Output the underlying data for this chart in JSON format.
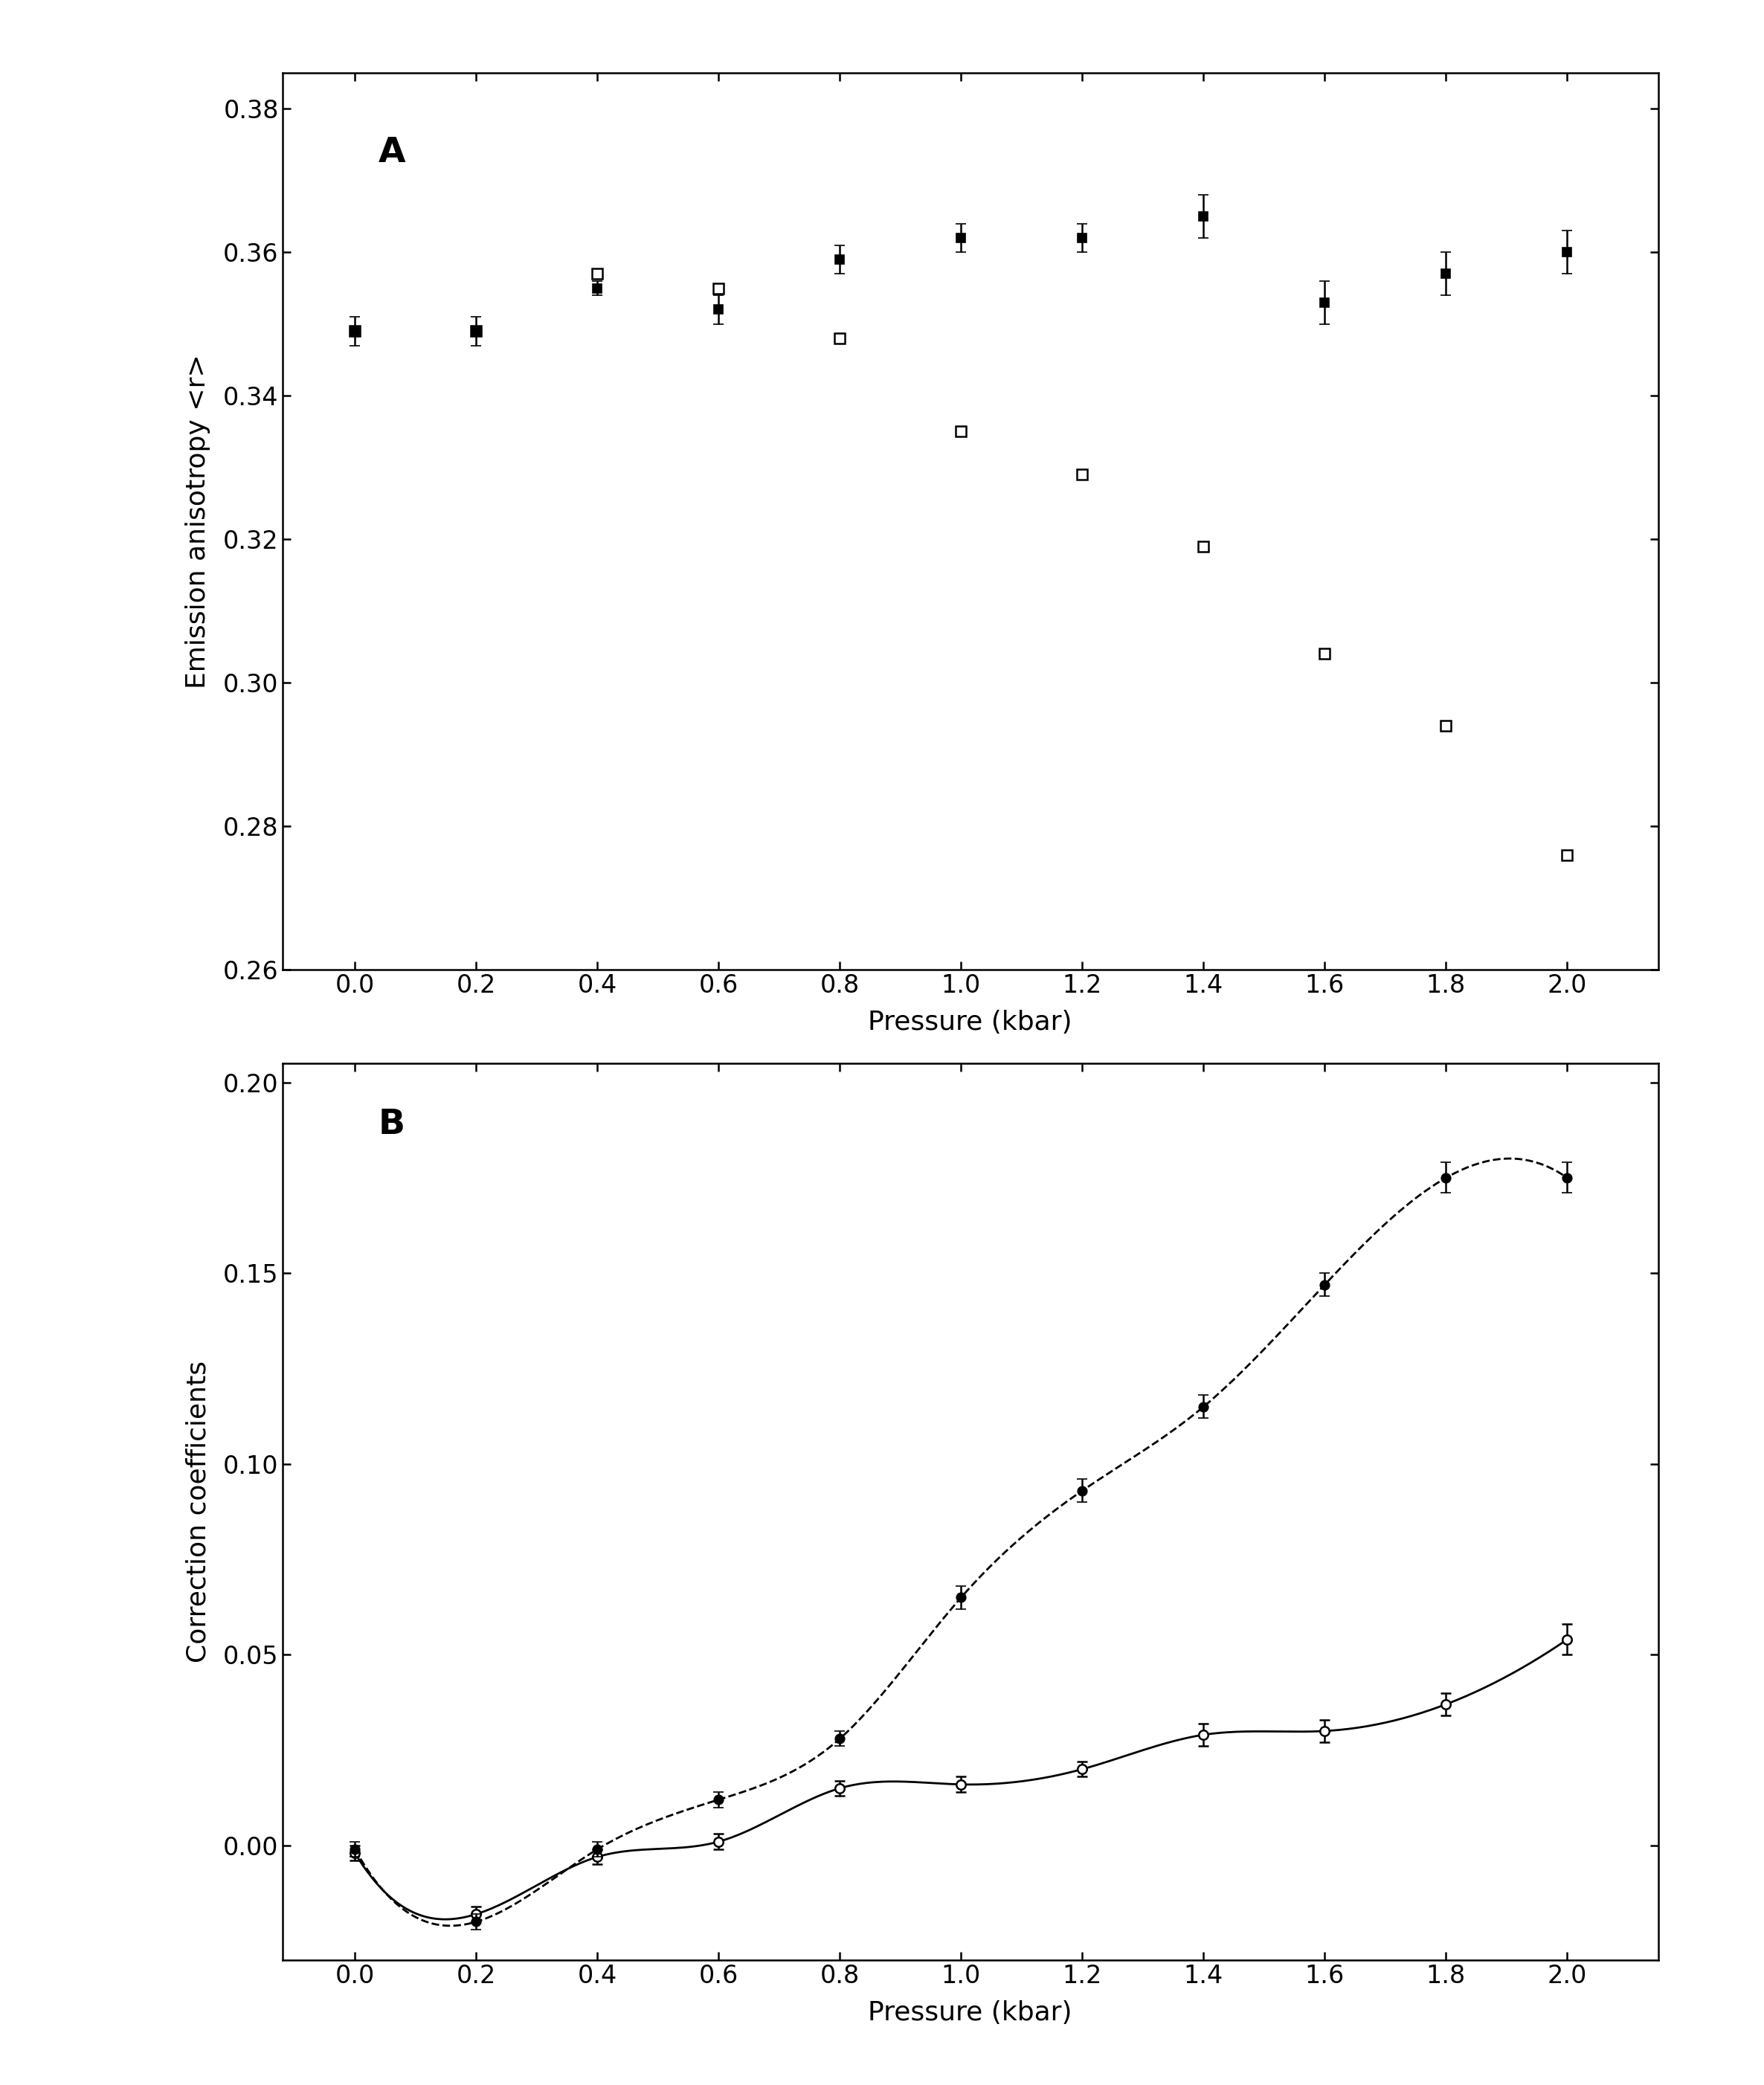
{
  "panel_A": {
    "label": "A",
    "xlabel": "Pressure (kbar)",
    "ylabel": "Emission anisotropy <r>",
    "xlim": [
      -0.12,
      2.15
    ],
    "ylim": [
      0.26,
      0.385
    ],
    "xticks": [
      0.0,
      0.2,
      0.4,
      0.6,
      0.8,
      1.0,
      1.2,
      1.4,
      1.6,
      1.8,
      2.0
    ],
    "yticks": [
      0.26,
      0.28,
      0.3,
      0.32,
      0.34,
      0.36,
      0.38
    ],
    "filled_x": [
      0.0,
      0.2,
      0.4,
      0.6,
      0.8,
      1.0,
      1.2,
      1.4,
      1.6,
      1.8,
      2.0
    ],
    "filled_y": [
      0.349,
      0.349,
      0.355,
      0.352,
      0.359,
      0.362,
      0.362,
      0.365,
      0.353,
      0.357,
      0.36
    ],
    "filled_yerr": [
      0.002,
      0.002,
      0.001,
      0.002,
      0.002,
      0.002,
      0.002,
      0.003,
      0.003,
      0.003,
      0.003
    ],
    "open_x": [
      0.0,
      0.2,
      0.4,
      0.6,
      0.8,
      1.0,
      1.2,
      1.4,
      1.6,
      1.8,
      2.0
    ],
    "open_y": [
      0.349,
      0.349,
      0.357,
      0.355,
      0.348,
      0.335,
      0.329,
      0.319,
      0.304,
      0.294,
      0.276
    ]
  },
  "panel_B": {
    "label": "B",
    "xlabel": "Pressure (kbar)",
    "ylabel": "Correction coefficients",
    "xlim": [
      -0.12,
      2.15
    ],
    "ylim": [
      -0.03,
      0.205
    ],
    "xticks": [
      0.0,
      0.2,
      0.4,
      0.6,
      0.8,
      1.0,
      1.2,
      1.4,
      1.6,
      1.8,
      2.0
    ],
    "yticks": [
      0.0,
      0.05,
      0.1,
      0.15,
      0.2
    ],
    "filled_x": [
      0.0,
      0.2,
      0.4,
      0.6,
      0.8,
      1.0,
      1.2,
      1.4,
      1.6,
      1.8,
      2.0
    ],
    "filled_y": [
      -0.001,
      -0.02,
      -0.001,
      0.012,
      0.028,
      0.065,
      0.093,
      0.115,
      0.147,
      0.175,
      0.175
    ],
    "filled_yerr": [
      0.002,
      0.002,
      0.002,
      0.002,
      0.002,
      0.003,
      0.003,
      0.003,
      0.003,
      0.004,
      0.004
    ],
    "open_x": [
      0.0,
      0.2,
      0.4,
      0.6,
      0.8,
      1.0,
      1.2,
      1.4,
      1.6,
      1.8,
      2.0
    ],
    "open_y": [
      -0.002,
      -0.018,
      -0.003,
      0.001,
      0.015,
      0.016,
      0.02,
      0.029,
      0.03,
      0.037,
      0.054
    ],
    "open_yerr": [
      0.002,
      0.002,
      0.002,
      0.002,
      0.002,
      0.002,
      0.002,
      0.003,
      0.003,
      0.003,
      0.004
    ]
  },
  "figure_bg": "#ffffff",
  "axes_bg": "#ffffff",
  "marker_size": 9,
  "label_fontsize": 26,
  "tick_fontsize": 24,
  "panel_label_fontsize": 34
}
